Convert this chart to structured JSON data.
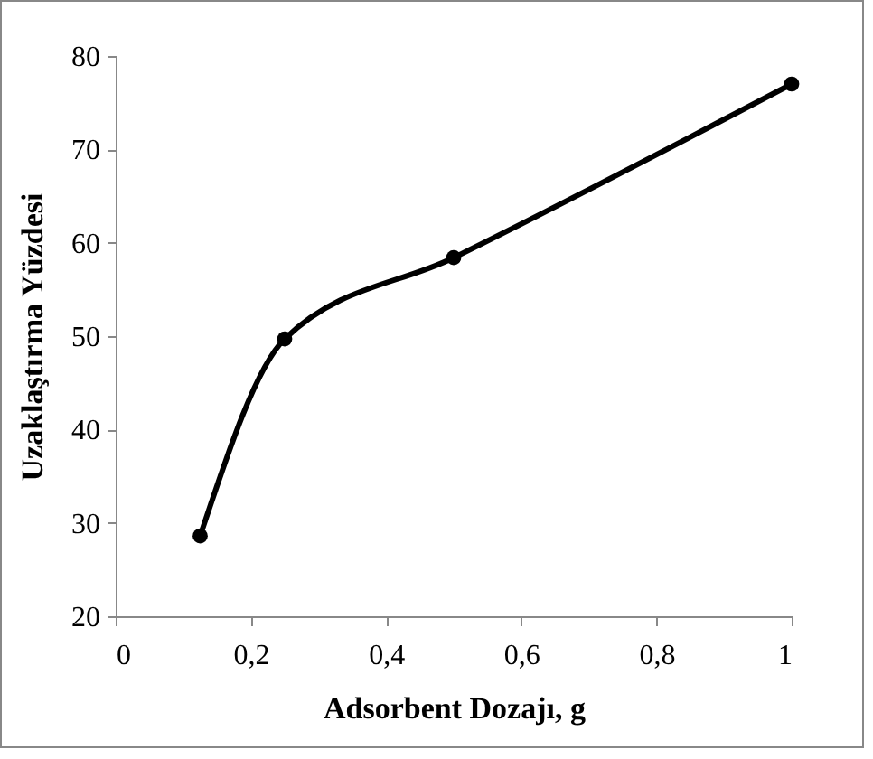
{
  "chart_data": {
    "type": "line",
    "xlabel": "Adsorbent Dozajı,  g",
    "ylabel": "Uzaklaştırma  Yüzdesi",
    "x": [
      0.125,
      0.25,
      0.5,
      1
    ],
    "series": [
      {
        "color": "#000000",
        "values": [
          28.6,
          49.7,
          58.4,
          77.0
        ]
      }
    ],
    "xlim": [
      0,
      1
    ],
    "xticks": [
      0,
      {
        "value": 0.2,
        "label": "0,2"
      },
      {
        "value": 0.4,
        "label": "0,4"
      },
      {
        "value": 0.6,
        "label": "0,6"
      },
      {
        "value": 0.8,
        "label": "0,8"
      },
      1
    ],
    "ylim": [
      20,
      80
    ],
    "yticks": [
      20,
      30,
      40,
      50,
      60,
      70,
      80
    ],
    "grid": false,
    "legend": false,
    "marker": "circle",
    "line_style": "solid"
  }
}
